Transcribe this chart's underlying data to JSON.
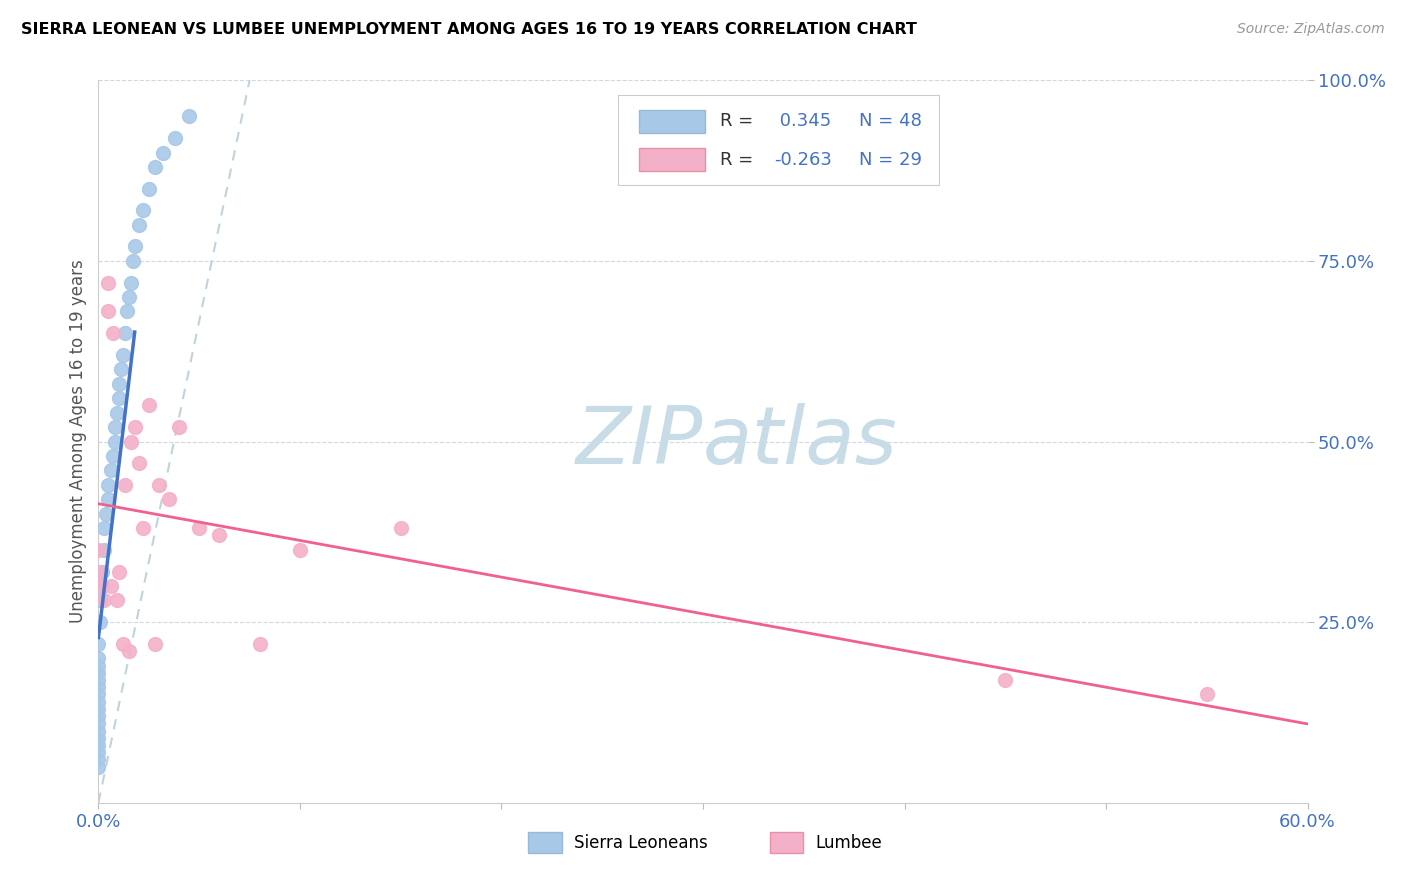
{
  "title": "SIERRA LEONEAN VS LUMBEE UNEMPLOYMENT AMONG AGES 16 TO 19 YEARS CORRELATION CHART",
  "source": "Source: ZipAtlas.com",
  "ylabel": "Unemployment Among Ages 16 to 19 years",
  "legend_sierra_label": "Sierra Leoneans",
  "legend_lumbee_label": "Lumbee",
  "sierra_color": "#a8c8e8",
  "lumbee_color": "#f4b0c8",
  "sierra_line_color": "#4472c4",
  "lumbee_line_color": "#f06090",
  "dashed_line_color": "#b0c8d8",
  "watermark_zip_color": "#c8dce8",
  "watermark_atlas_color": "#c8dce8",
  "sierra_x": [
    0.0,
    0.0,
    0.0,
    0.0,
    0.0,
    0.0,
    0.0,
    0.0,
    0.0,
    0.0,
    0.0,
    0.0,
    0.0,
    0.0,
    0.0,
    0.0,
    0.0,
    0.001,
    0.001,
    0.002,
    0.002,
    0.003,
    0.003,
    0.004,
    0.005,
    0.005,
    0.006,
    0.007,
    0.008,
    0.008,
    0.009,
    0.01,
    0.01,
    0.011,
    0.012,
    0.013,
    0.014,
    0.015,
    0.016,
    0.017,
    0.018,
    0.02,
    0.022,
    0.025,
    0.028,
    0.032,
    0.038,
    0.045
  ],
  "sierra_y": [
    0.05,
    0.06,
    0.07,
    0.08,
    0.09,
    0.1,
    0.11,
    0.12,
    0.13,
    0.14,
    0.15,
    0.16,
    0.17,
    0.18,
    0.19,
    0.2,
    0.22,
    0.25,
    0.28,
    0.3,
    0.32,
    0.35,
    0.38,
    0.4,
    0.42,
    0.44,
    0.46,
    0.48,
    0.5,
    0.52,
    0.54,
    0.56,
    0.58,
    0.6,
    0.62,
    0.65,
    0.68,
    0.7,
    0.72,
    0.75,
    0.77,
    0.8,
    0.82,
    0.85,
    0.88,
    0.9,
    0.92,
    0.95
  ],
  "lumbee_x": [
    0.0,
    0.0,
    0.0,
    0.003,
    0.005,
    0.005,
    0.006,
    0.007,
    0.009,
    0.01,
    0.012,
    0.013,
    0.015,
    0.016,
    0.018,
    0.02,
    0.022,
    0.025,
    0.028,
    0.03,
    0.035,
    0.04,
    0.05,
    0.06,
    0.08,
    0.1,
    0.15,
    0.45,
    0.55
  ],
  "lumbee_y": [
    0.3,
    0.32,
    0.35,
    0.28,
    0.72,
    0.68,
    0.3,
    0.65,
    0.28,
    0.32,
    0.22,
    0.44,
    0.21,
    0.5,
    0.52,
    0.47,
    0.38,
    0.55,
    0.22,
    0.44,
    0.42,
    0.52,
    0.38,
    0.37,
    0.22,
    0.35,
    0.38,
    0.17,
    0.15
  ],
  "xlim": [
    0.0,
    0.6
  ],
  "ylim": [
    0.0,
    1.0
  ],
  "xticks": [
    0.0,
    0.1,
    0.2,
    0.3,
    0.4,
    0.5,
    0.6
  ],
  "xtick_labels": [
    "0.0%",
    "",
    "",
    "",
    "",
    "",
    "60.0%"
  ],
  "ytick_right_vals": [
    0.25,
    0.5,
    0.75,
    1.0
  ],
  "ytick_right_labels": [
    "25.0%",
    "50.0%",
    "75.0%",
    "100.0%"
  ],
  "legend_r1": "R =  0.345",
  "legend_n1": "N = 48",
  "legend_r2": "R = -0.263",
  "legend_n2": "N = 29"
}
